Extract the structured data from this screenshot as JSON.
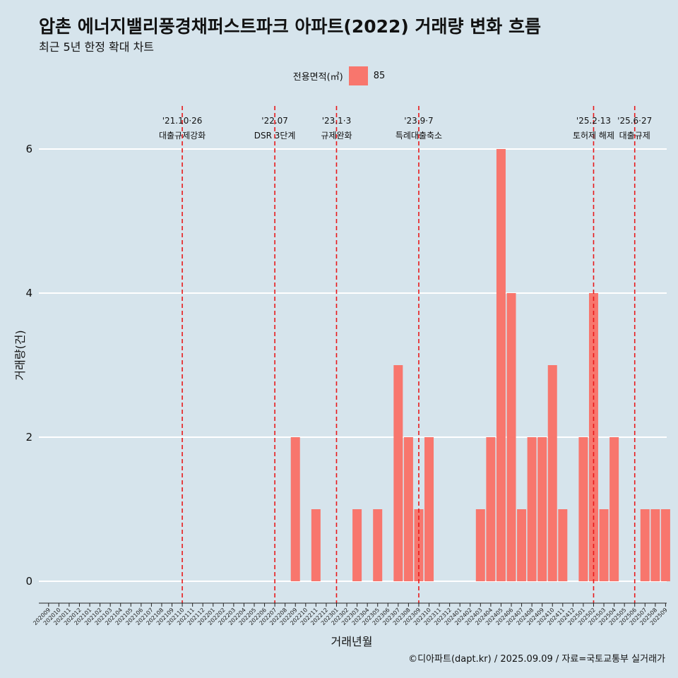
{
  "title": "압촌 에너지밸리풍경채퍼스트파크 아파트(2022) 거래량 변화 흐름",
  "subtitle": "최근 5년 한정 확대 차트",
  "caption": "©디아파트(dapt.kr) / 2025.09.09 / 자료=국토교통부 실거래가",
  "chart_data": {
    "type": "bar",
    "xlabel": "거래년월",
    "ylabel": "거래량(건)",
    "ylim": [
      0,
      6
    ],
    "yticks": [
      0,
      2,
      4,
      6
    ],
    "grid": true,
    "legend": {
      "title": "전용면적(㎡)",
      "placement": "top",
      "entries": [
        "85"
      ]
    },
    "bar_color": "#f8766d",
    "categories": [
      "202009",
      "202010",
      "202011",
      "202012",
      "202101",
      "202102",
      "202103",
      "202104",
      "202105",
      "202106",
      "202107",
      "202108",
      "202109",
      "202110",
      "202111",
      "202112",
      "202201",
      "202202",
      "202203",
      "202204",
      "202205",
      "202206",
      "202207",
      "202208",
      "202209",
      "202210",
      "202211",
      "202212",
      "202301",
      "202302",
      "202303",
      "202304",
      "202305",
      "202306",
      "202307",
      "202308",
      "202309",
      "202310",
      "202311",
      "202312",
      "202401",
      "202402",
      "202403",
      "202404",
      "202405",
      "202406",
      "202407",
      "202408",
      "202409",
      "202410",
      "202411",
      "202412",
      "202501",
      "202502",
      "202503",
      "202504",
      "202505",
      "202506",
      "202507",
      "202508",
      "202509"
    ],
    "series": [
      {
        "name": "85",
        "values": [
          0,
          0,
          0,
          0,
          0,
          0,
          0,
          0,
          0,
          0,
          0,
          0,
          0,
          0,
          0,
          0,
          0,
          0,
          0,
          0,
          0,
          0,
          0,
          0,
          2,
          0,
          1,
          0,
          0,
          0,
          1,
          0,
          1,
          0,
          3,
          2,
          1,
          2,
          0,
          0,
          0,
          0,
          1,
          2,
          6,
          4,
          1,
          2,
          2,
          3,
          1,
          0,
          2,
          4,
          1,
          2,
          0,
          0,
          1,
          1,
          1
        ]
      }
    ],
    "annotations": [
      {
        "date": "'21.10·26",
        "label": "대출규제강화",
        "category": "202110"
      },
      {
        "date": "'22.07",
        "label": "DSR 3단계",
        "category": "202207"
      },
      {
        "date": "'23.1·3",
        "label": "규제완화",
        "category": "202301"
      },
      {
        "date": "'23.9·7",
        "label": "특례대출축소",
        "category": "202309"
      },
      {
        "date": "'25.2·13",
        "label": "토허제 해제",
        "category": "202502"
      },
      {
        "date": "'25.6·27",
        "label": "대출규제",
        "category": "202506"
      }
    ]
  }
}
